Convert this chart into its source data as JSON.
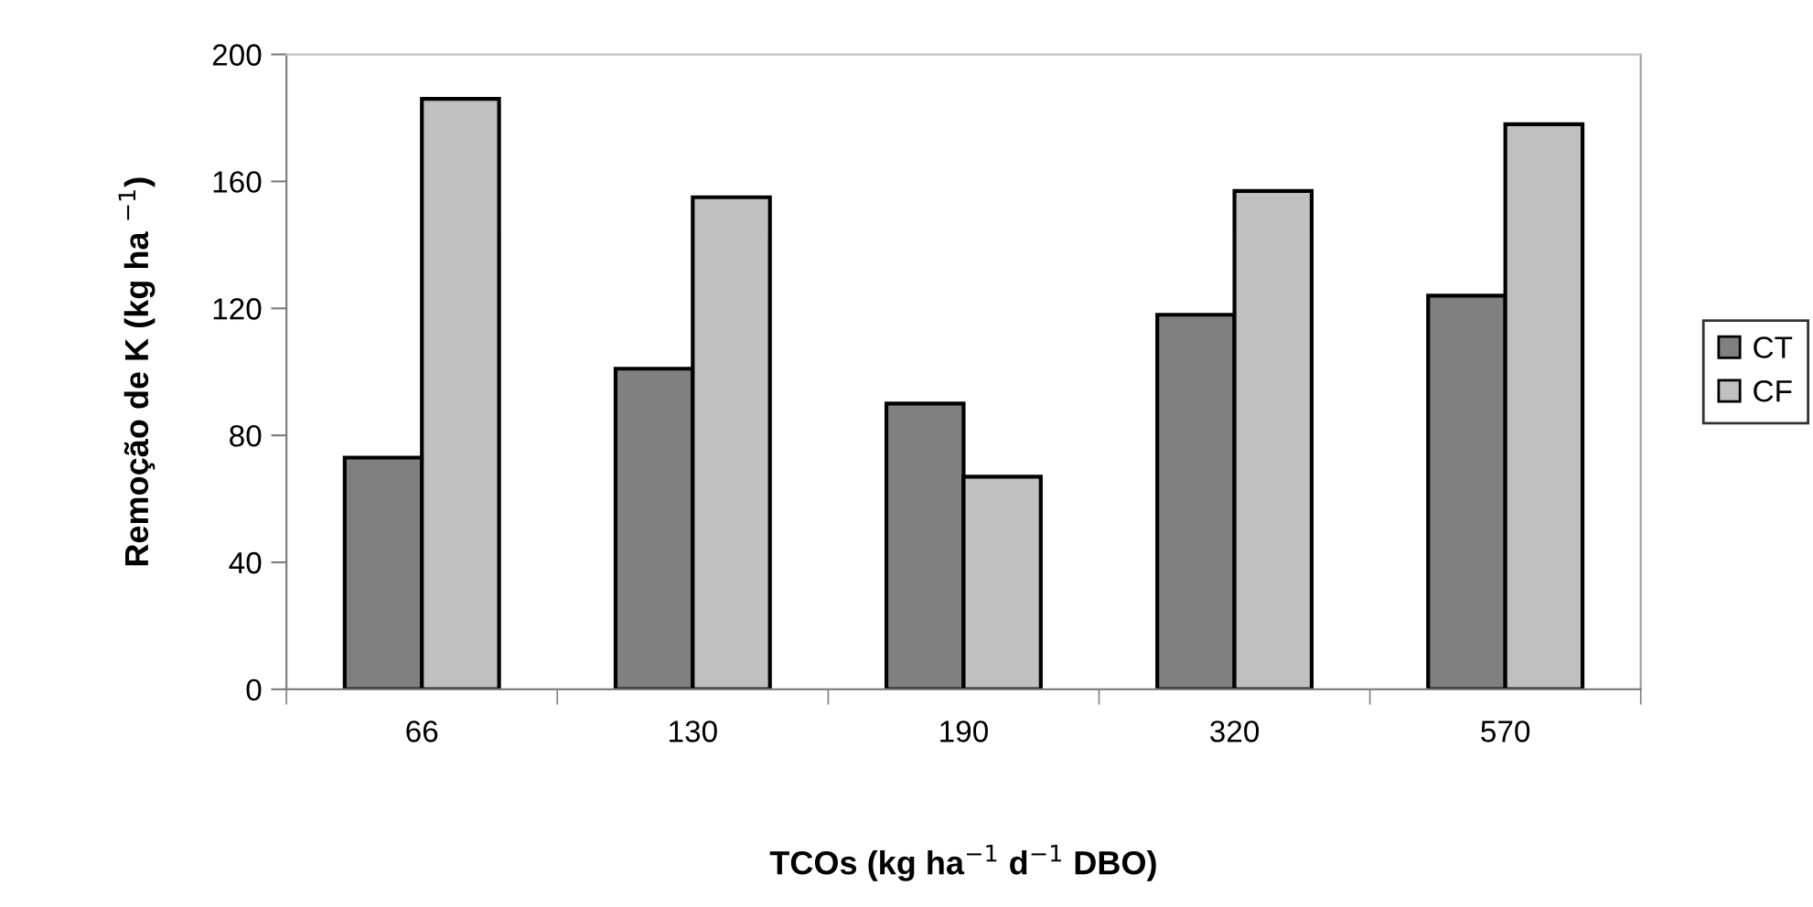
{
  "chart_data": {
    "type": "bar",
    "xlabel": "TCOs (kg ha$^{−1}$ d$^{−1}$ DBO)",
    "ylabel": "Remoção de K (kg ha $^{−1}$)",
    "categories": [
      "66",
      "130",
      "190",
      "320",
      "570"
    ],
    "series": [
      {
        "name": "CT",
        "color": "#808080",
        "values": [
          73,
          101,
          90,
          118,
          124
        ]
      },
      {
        "name": "CF",
        "color": "#c0c0c0",
        "values": [
          186,
          155,
          67,
          157,
          178
        ]
      }
    ],
    "ylim": [
      0,
      200
    ],
    "yticks": [
      0,
      40,
      80,
      120,
      160,
      200
    ],
    "grid": false,
    "legend": "right"
  }
}
